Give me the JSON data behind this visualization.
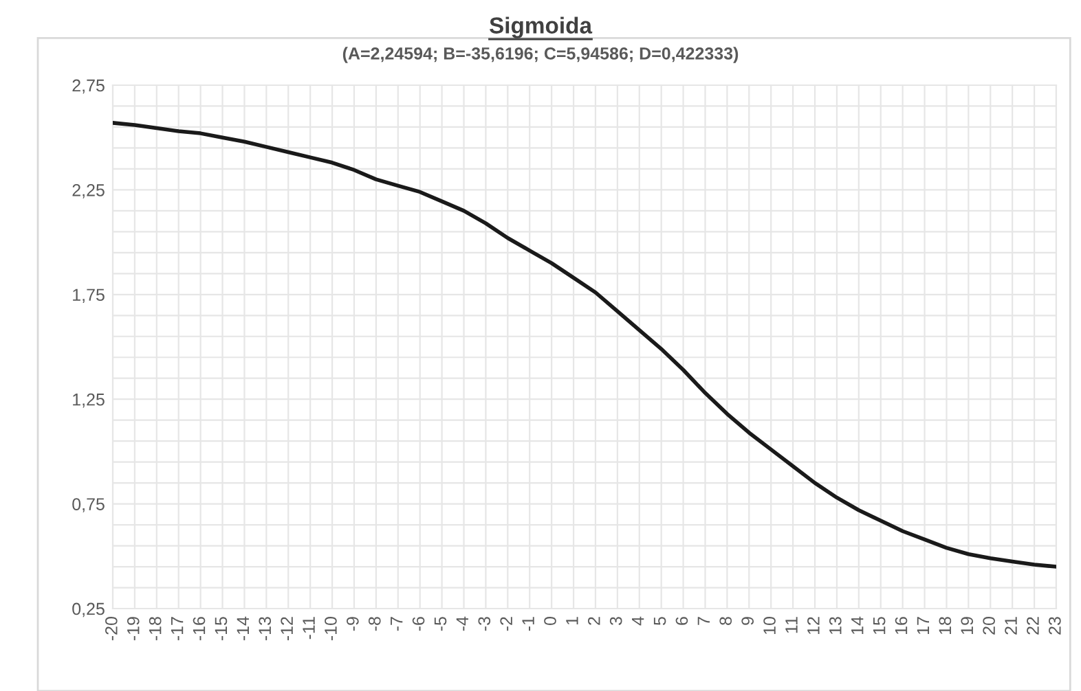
{
  "chart_data": {
    "type": "line",
    "title": "Sigmoida",
    "subtitle": "(A=2,24594; B=-35,6196; C=5,94586; D=0,422333)",
    "x": [
      -20,
      -19,
      -18,
      -17,
      -16,
      -15,
      -14,
      -13,
      -12,
      -11,
      -10,
      -9,
      -8,
      -7,
      -6,
      -5,
      -4,
      -3,
      -2,
      -1,
      0,
      1,
      2,
      3,
      4,
      5,
      6,
      7,
      8,
      9,
      10,
      11,
      12,
      13,
      14,
      15,
      16,
      17,
      18,
      19,
      20,
      21,
      22,
      23
    ],
    "series": [
      {
        "color": "#1a1a1a",
        "values": [
          2.57,
          2.56,
          2.545,
          2.53,
          2.52,
          2.5,
          2.48,
          2.455,
          2.43,
          2.405,
          2.38,
          2.345,
          2.3,
          2.27,
          2.24,
          2.195,
          2.15,
          2.09,
          2.02,
          1.96,
          1.9,
          1.83,
          1.76,
          1.67,
          1.58,
          1.49,
          1.39,
          1.28,
          1.18,
          1.09,
          1.01,
          0.93,
          0.85,
          0.78,
          0.72,
          0.67,
          0.62,
          0.58,
          0.54,
          0.51,
          0.49,
          0.475,
          0.46,
          0.45
        ]
      }
    ],
    "xlim": [
      -20,
      23
    ],
    "xticks": [
      -20,
      -19,
      -18,
      -17,
      -16,
      -15,
      -14,
      -13,
      -12,
      -11,
      -10,
      -9,
      -8,
      -7,
      -6,
      -5,
      -4,
      -3,
      -2,
      -1,
      0,
      1,
      2,
      3,
      4,
      5,
      6,
      7,
      8,
      9,
      10,
      11,
      12,
      13,
      14,
      15,
      16,
      17,
      18,
      19,
      20,
      21,
      22,
      23
    ],
    "ylim": [
      0.25,
      2.75
    ],
    "yticks": [
      {
        "value": 0.25,
        "label": "0,25"
      },
      {
        "value": 0.35,
        "label": null
      },
      {
        "value": 0.45,
        "label": null
      },
      {
        "value": 0.55,
        "label": null
      },
      {
        "value": 0.65,
        "label": null
      },
      {
        "value": 0.75,
        "label": "0,75"
      },
      {
        "value": 0.85,
        "label": null
      },
      {
        "value": 0.95,
        "label": null
      },
      {
        "value": 1.05,
        "label": null
      },
      {
        "value": 1.15,
        "label": null
      },
      {
        "value": 1.25,
        "label": "1,25"
      },
      {
        "value": 1.35,
        "label": null
      },
      {
        "value": 1.45,
        "label": null
      },
      {
        "value": 1.55,
        "label": null
      },
      {
        "value": 1.65,
        "label": null
      },
      {
        "value": 1.75,
        "label": "1,75"
      },
      {
        "value": 1.85,
        "label": null
      },
      {
        "value": 1.95,
        "label": null
      },
      {
        "value": 2.05,
        "label": null
      },
      {
        "value": 2.15,
        "label": null
      },
      {
        "value": 2.25,
        "label": "2,25"
      },
      {
        "value": 2.35,
        "label": null
      },
      {
        "value": 2.45,
        "label": null
      },
      {
        "value": 2.55,
        "label": null
      },
      {
        "value": 2.65,
        "label": null
      },
      {
        "value": 2.75,
        "label": "2,75"
      }
    ],
    "grid": true,
    "marker": "none",
    "line_style": "solid"
  }
}
